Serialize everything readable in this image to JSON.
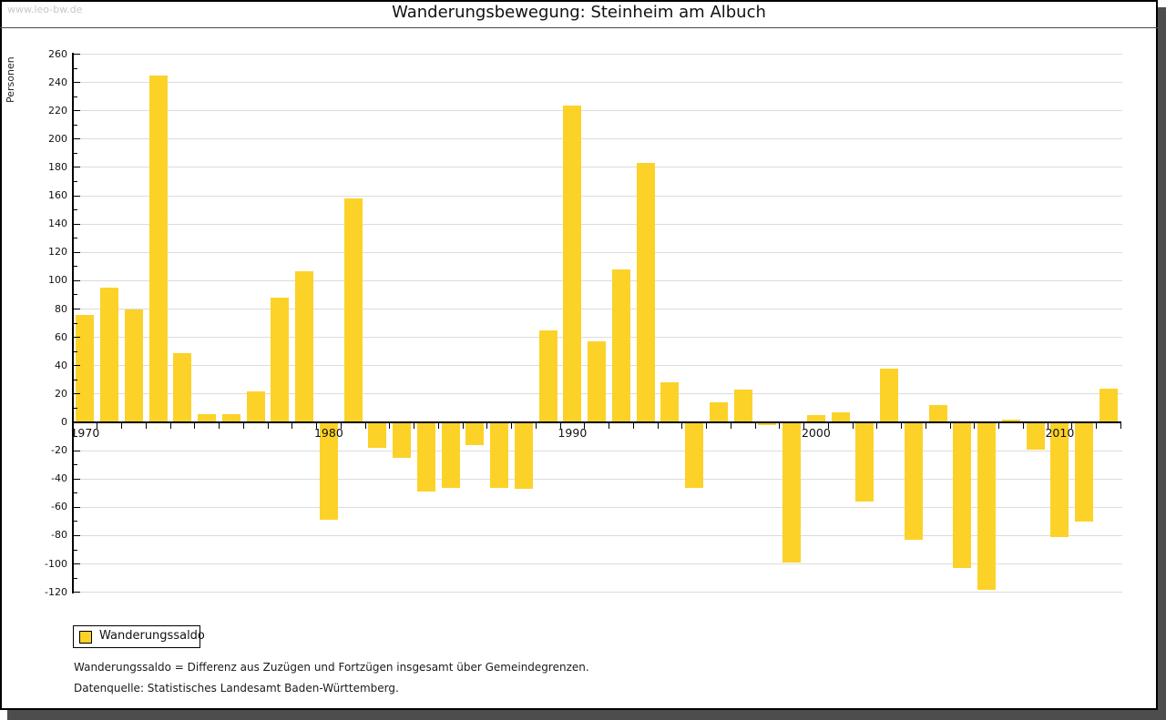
{
  "window": {
    "watermark": "www.leo-bw.de",
    "title": "Wanderungsbewegung: Steinheim am Albuch"
  },
  "chart_data": {
    "type": "bar",
    "title": "Wanderungsbewegung: Steinheim am Albuch",
    "xlabel": "",
    "ylabel": "Personen",
    "ylim": [
      -120,
      260
    ],
    "ytick_step": 20,
    "ytick_minor_step": 10,
    "grid": true,
    "legend_position": "bottom-left",
    "y_tick_labels": [
      "260",
      "240",
      "220",
      "200",
      "180",
      "160",
      "140",
      "120",
      "100",
      "80",
      "60",
      "40",
      "20",
      "0",
      "-20",
      "-40",
      "-60",
      "-80",
      "-100",
      "-120"
    ],
    "x_tick_labels": [
      "1970",
      "1980",
      "1990",
      "2000",
      "2010"
    ],
    "categories": [
      1970,
      1971,
      1972,
      1973,
      1974,
      1975,
      1976,
      1977,
      1978,
      1979,
      1980,
      1981,
      1982,
      1983,
      1984,
      1985,
      1986,
      1987,
      1988,
      1989,
      1990,
      1991,
      1992,
      1993,
      1994,
      1995,
      1996,
      1997,
      1998,
      1999,
      2000,
      2001,
      2002,
      2003,
      2004,
      2005,
      2006,
      2007,
      2008,
      2009,
      2010,
      2011,
      2012
    ],
    "series": [
      {
        "name": "Wanderungssaldo",
        "color": "#fcd228",
        "values": [
          76,
          95,
          80,
          245,
          49,
          6,
          6,
          22,
          88,
          107,
          -69,
          158,
          -18,
          -25,
          -49,
          -46,
          -16,
          -46,
          -47,
          65,
          224,
          57,
          108,
          183,
          28,
          -46,
          14,
          23,
          -2,
          -99,
          5,
          7,
          -56,
          38,
          -83,
          12,
          -103,
          -118,
          2,
          -19,
          -81,
          -70,
          24
        ]
      }
    ]
  },
  "legend": {
    "label": "Wanderungssaldo",
    "swatch_color": "#fcd228"
  },
  "footnotes": {
    "definition": "Wanderungssaldo = Differenz aus Zuzügen und Fortzügen insgesamt über Gemeindegrenzen.",
    "source": "Datenquelle: Statistisches Landesamt Baden-Württemberg."
  },
  "colors": {
    "bar": "#fcd228",
    "gridline": "#dcdcdc",
    "axis": "#000000",
    "text": "#111111",
    "watermark": "#c8c8c8",
    "window_shadow": "#4d4d4d"
  }
}
